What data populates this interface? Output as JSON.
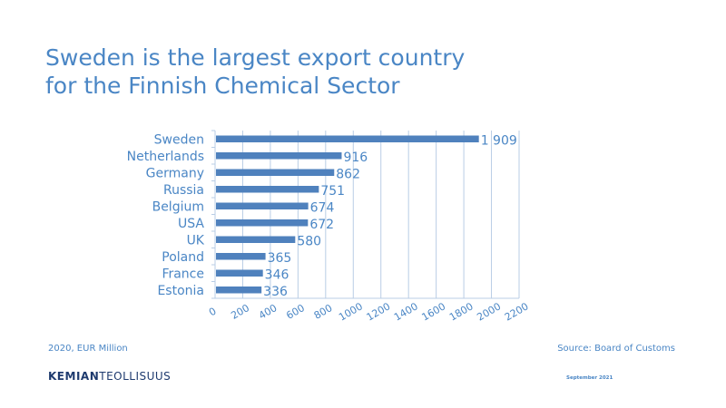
{
  "title_line1": "Sweden is the largest export country",
  "title_line2": "for the Finnish Chemical Sector",
  "footnote": "2020, EUR Million",
  "source": "Source: Board of Customs",
  "logo": {
    "bold": "KEMIAN",
    "light": "TEOLLISUUS"
  },
  "date": "September 2021",
  "colors": {
    "bar": "#4f81bd",
    "text": "#4a86c5",
    "grid": "#b9cde5"
  },
  "chart_data": {
    "type": "bar",
    "orientation": "horizontal",
    "categories": [
      "Sweden",
      "Netherlands",
      "Germany",
      "Russia",
      "Belgium",
      "USA",
      "UK",
      "Poland",
      "France",
      "Estonia"
    ],
    "values": [
      1909,
      916,
      862,
      751,
      674,
      672,
      580,
      365,
      346,
      336
    ],
    "value_labels": [
      "1 909",
      "916",
      "862",
      "751",
      "674",
      "672",
      "580",
      "365",
      "346",
      "336"
    ],
    "xlim": [
      0,
      2200
    ],
    "xticks": [
      "0",
      "200",
      "400",
      "600",
      "800",
      "1000",
      "1200",
      "1400",
      "1600",
      "1800",
      "2000",
      "2200"
    ],
    "grid": true,
    "legend": false
  }
}
